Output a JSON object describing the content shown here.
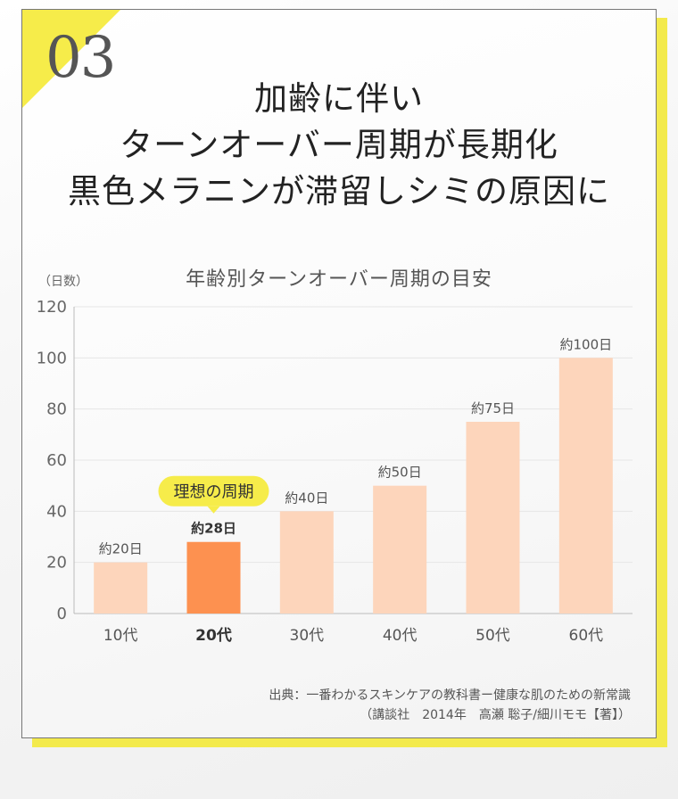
{
  "badge_number": "03",
  "headline": [
    "加齢に伴い",
    "ターンオーバー周期が長期化",
    "黒色メラニンが滞留しシミの原因に"
  ],
  "highlight_label": "理想の周期",
  "source": {
    "line1": "出典：一番わかるスキンケアの教科書ー健康な肌のための新常識",
    "line2": "（講談社　2014年　高瀬 聡子/細川モモ【著】）"
  },
  "colors": {
    "bar": "#fdd5bb",
    "bar_highlight": "#fd9150",
    "accent_yellow": "#f6ec4a"
  },
  "chart_data": {
    "type": "bar",
    "title": "年齢別ターンオーバー周期の目安",
    "ylabel": "（日数）",
    "xlabel": "",
    "categories": [
      "10代",
      "20代",
      "30代",
      "40代",
      "50代",
      "60代"
    ],
    "values": [
      20,
      28,
      40,
      50,
      75,
      100
    ],
    "data_labels": [
      "約20日",
      "約28日",
      "約40日",
      "約50日",
      "約75日",
      "約100日"
    ],
    "highlight_index": 1,
    "ylim": [
      0,
      120
    ],
    "yticks": [
      0,
      20,
      40,
      60,
      80,
      100,
      120
    ],
    "grid": true
  }
}
